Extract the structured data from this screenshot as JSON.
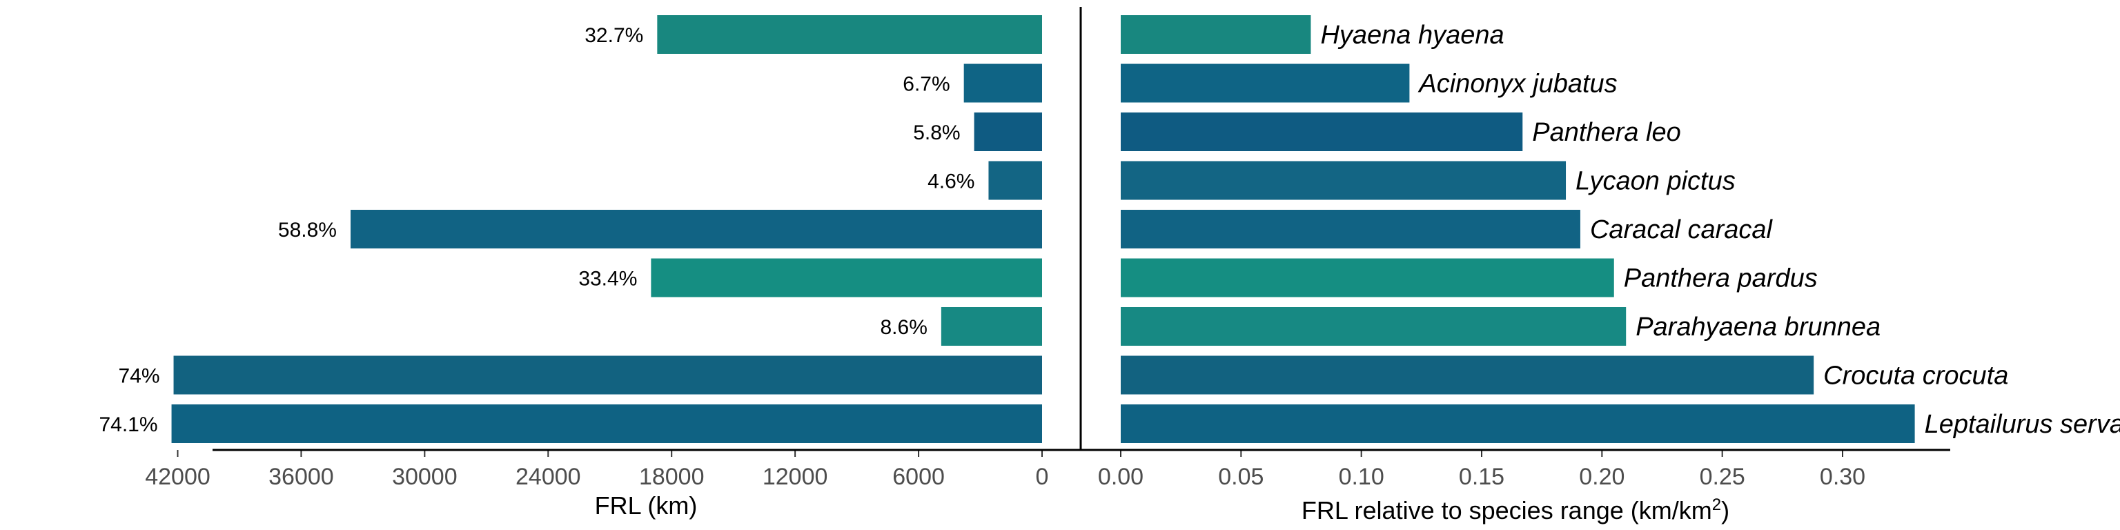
{
  "chart_data": [
    {
      "type": "bar",
      "orientation": "horizontal",
      "direction": "reversed",
      "xlabel": "FRL (km)",
      "xlim": [
        0,
        45000
      ],
      "xticks": [
        42000,
        36000,
        30000,
        24000,
        18000,
        12000,
        6000,
        0
      ],
      "categories": [
        "Hyaena hyaena",
        "Acinonyx jubatus",
        "Panthera leo",
        "Lycaon pictus",
        "Caracal caracal",
        "Panthera pardus",
        "Parahyaena brunnea",
        "Crocuta crocuta",
        "Leptailurus serval"
      ],
      "values": [
        18700,
        3800,
        3300,
        2600,
        33600,
        19000,
        4900,
        42200,
        42300
      ],
      "labels": [
        "32.7%",
        "6.7%",
        "5.8%",
        "4.6%",
        "58.8%",
        "33.4%",
        "8.6%",
        "74%",
        "74.1%"
      ],
      "colors": [
        "#18877f",
        "#0f6485",
        "#0f5b82",
        "#136584",
        "#116384",
        "#158e82",
        "#178983",
        "#126280",
        "#0f6283"
      ]
    },
    {
      "type": "bar",
      "orientation": "horizontal",
      "xlabel": "FRL relative to species range (km/km",
      "xlabel_sup": "2",
      "xlabel_end": ")",
      "xlim": [
        0,
        0.33
      ],
      "xticks": [
        "0.00",
        "0.05",
        "0.10",
        "0.15",
        "0.20",
        "0.25",
        "0.30"
      ],
      "categories": [
        "Hyaena hyaena",
        "Acinonyx jubatus",
        "Panthera leo",
        "Lycaon pictus",
        "Caracal caracal",
        "Panthera pardus",
        "Parahyaena brunnea",
        "Crocuta crocuta",
        "Leptailurus serval"
      ],
      "values": [
        0.079,
        0.12,
        0.167,
        0.185,
        0.191,
        0.205,
        0.21,
        0.288,
        0.33
      ],
      "colors": [
        "#18877f",
        "#0f6485",
        "#0f5b82",
        "#136584",
        "#116384",
        "#158e82",
        "#178983",
        "#126280",
        "#0f6283"
      ]
    }
  ]
}
